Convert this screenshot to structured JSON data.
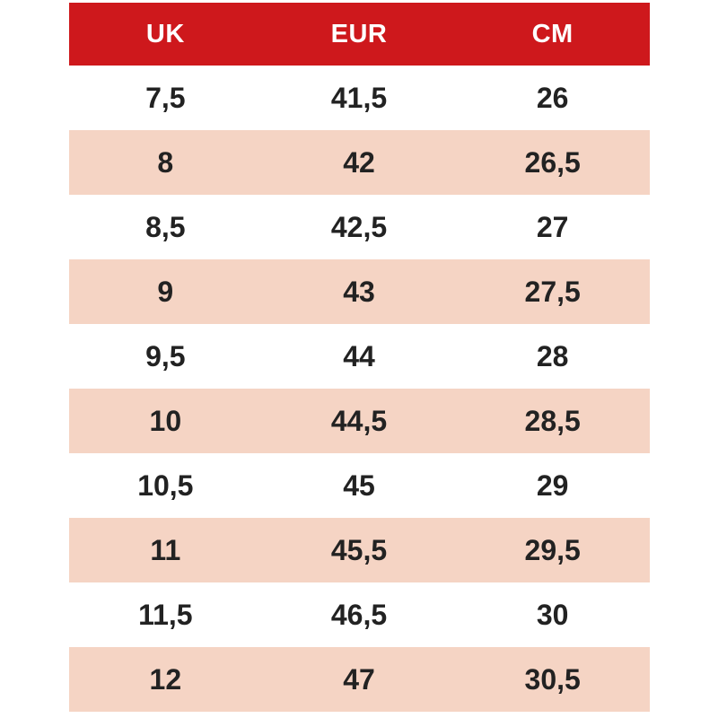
{
  "colors": {
    "header_bg": "#ce181c",
    "header_text": "#ffffff",
    "row_bg": "#ffffff",
    "row_alt_bg": "#f5d4c4",
    "cell_text": "#222222",
    "page_bg": "#ffffff"
  },
  "chart_data": {
    "type": "table",
    "title": "",
    "columns": [
      "UK",
      "EUR",
      "CM"
    ],
    "rows": [
      [
        "7,5",
        "41,5",
        "26"
      ],
      [
        "8",
        "42",
        "26,5"
      ],
      [
        "8,5",
        "42,5",
        "27"
      ],
      [
        "9",
        "43",
        "27,5"
      ],
      [
        "9,5",
        "44",
        "28"
      ],
      [
        "10",
        "44,5",
        "28,5"
      ],
      [
        "10,5",
        "45",
        "29"
      ],
      [
        "11",
        "45,5",
        "29,5"
      ],
      [
        "11,5",
        "46,5",
        "30"
      ],
      [
        "12",
        "47",
        "30,5"
      ]
    ],
    "layout_hints": {
      "header_style": "solid red band, white bold text",
      "row_striping": "white / light peach alternating, starting white",
      "decimal_separator": "comma",
      "column_alignment": "center"
    }
  }
}
